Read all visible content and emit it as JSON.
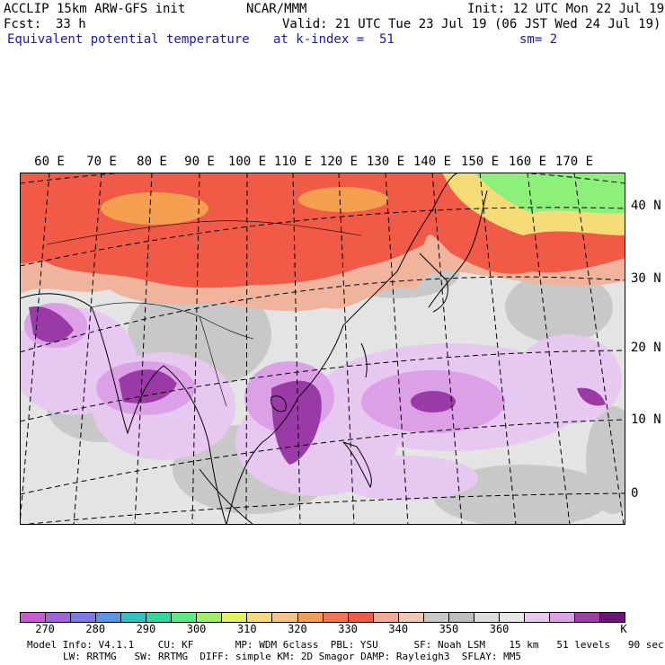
{
  "header": {
    "model": "ACCLIP 15km ARW-GFS init",
    "org": "NCAR/MMM",
    "init": "Init: 12 UTC Mon 22 Jul 19",
    "fcst_label": "Fcst:",
    "fcst_value": "33 h",
    "valid": "Valid: 21 UTC Tue 23 Jul 19 (06 JST Wed 24 Jul 19)",
    "field": "Equivalent potential temperature",
    "level": "at k-index =  51",
    "smoothing": "sm= 2"
  },
  "map": {
    "lon_labels": [
      "60 E",
      "70 E",
      "80 E",
      "90 E",
      "100 E",
      "110 E",
      "120 E",
      "130 E",
      "140 E",
      "150 E",
      "160 E",
      "170 E"
    ],
    "lat_labels": [
      "40 N",
      "30 N",
      "20 N",
      "10 N",
      "0"
    ]
  },
  "colorbar": {
    "colors": [
      "#c85ad2",
      "#a064dc",
      "#7d78e6",
      "#5a96e6",
      "#2dc3c3",
      "#32d7a0",
      "#5aeb82",
      "#a0f064",
      "#e6f05a",
      "#f5dc78",
      "#f5c382",
      "#f5a050",
      "#f57350",
      "#f05a46",
      "#f5aa96",
      "#f0c8b4",
      "#c8c8c8",
      "#bebebe",
      "#dcdcdc",
      "#e6e6e6",
      "#e6c8f0",
      "#dca0e6",
      "#a03ca8",
      "#6e1478"
    ],
    "labels": [
      "270",
      "280",
      "290",
      "300",
      "310",
      "320",
      "330",
      "340",
      "350",
      "360",
      "K"
    ]
  },
  "model_info": {
    "line1": "Model Info: V4.1.1    CU: KF       MP: WDM 6class  PBL: YSU      SF: Noah LSM    15 km   51 levels   90 sec",
    "line2": "LW: RRTMG   SW: RRTMG  DIFF: simple KM: 2D Smagor DAMP: Rayleigh3  SFLAY: MM5"
  }
}
